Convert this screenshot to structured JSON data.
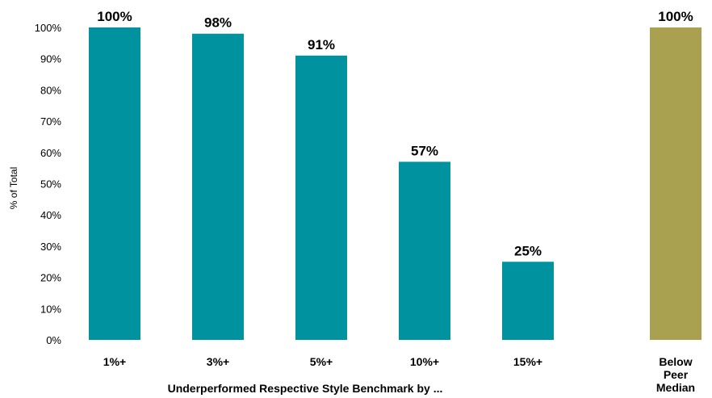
{
  "chart_data": {
    "type": "bar",
    "ylabel": "% of Total",
    "xlabel": "Underperformed Respective Style Benchmark by ...",
    "ylim": [
      0,
      100
    ],
    "y_ticks": [
      "0%",
      "10%",
      "20%",
      "30%",
      "40%",
      "50%",
      "60%",
      "70%",
      "80%",
      "90%",
      "100%"
    ],
    "grid": false,
    "groups": [
      {
        "categories": [
          "1%+",
          "3%+",
          "5%+",
          "10%+",
          "15%+"
        ],
        "values": [
          100,
          98,
          91,
          57,
          25
        ],
        "labels": [
          "100%",
          "98%",
          "91%",
          "57%",
          "25%"
        ],
        "color": "#00929e"
      },
      {
        "categories": [
          "Below\nPeer\nMedian"
        ],
        "values": [
          100
        ],
        "labels": [
          "100%"
        ],
        "color": "#a9a050"
      }
    ]
  }
}
